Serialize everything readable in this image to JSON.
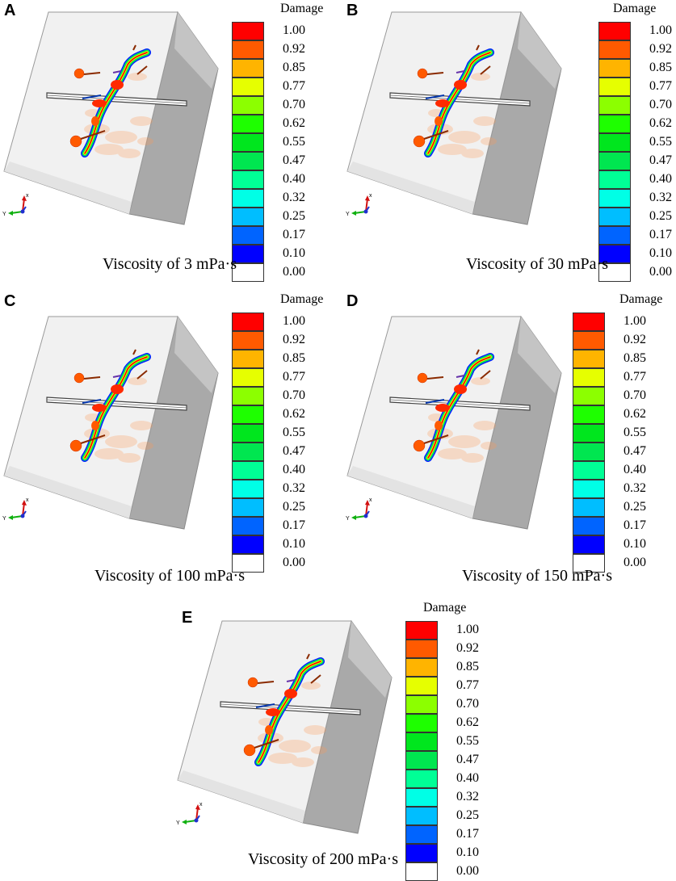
{
  "legend": {
    "title": "Damage",
    "levels": [
      "1.00",
      "0.92",
      "0.85",
      "0.77",
      "0.70",
      "0.62",
      "0.55",
      "0.47",
      "0.40",
      "0.32",
      "0.25",
      "0.17",
      "0.10",
      "0.00"
    ],
    "colors": [
      "#ff0000",
      "#ff5a00",
      "#ffb400",
      "#e6ff00",
      "#8cff00",
      "#1eff00",
      "#00e61e",
      "#00e650",
      "#00ff96",
      "#00ffe6",
      "#00beff",
      "#0064ff",
      "#0000ff",
      "#ffffff"
    ]
  },
  "axis_labels": {
    "x": "x",
    "y": "Y"
  },
  "panels": [
    {
      "letter": "A",
      "caption": "Viscosity of 3 mPa·s"
    },
    {
      "letter": "B",
      "caption": "Viscosity of 30 mPa·s"
    },
    {
      "letter": "C",
      "caption": "Viscosity of 100 mPa·s"
    },
    {
      "letter": "D",
      "caption": "Viscosity of 150 mPa·s"
    },
    {
      "letter": "E",
      "caption": "Viscosity of 200 mPa·s"
    }
  ]
}
